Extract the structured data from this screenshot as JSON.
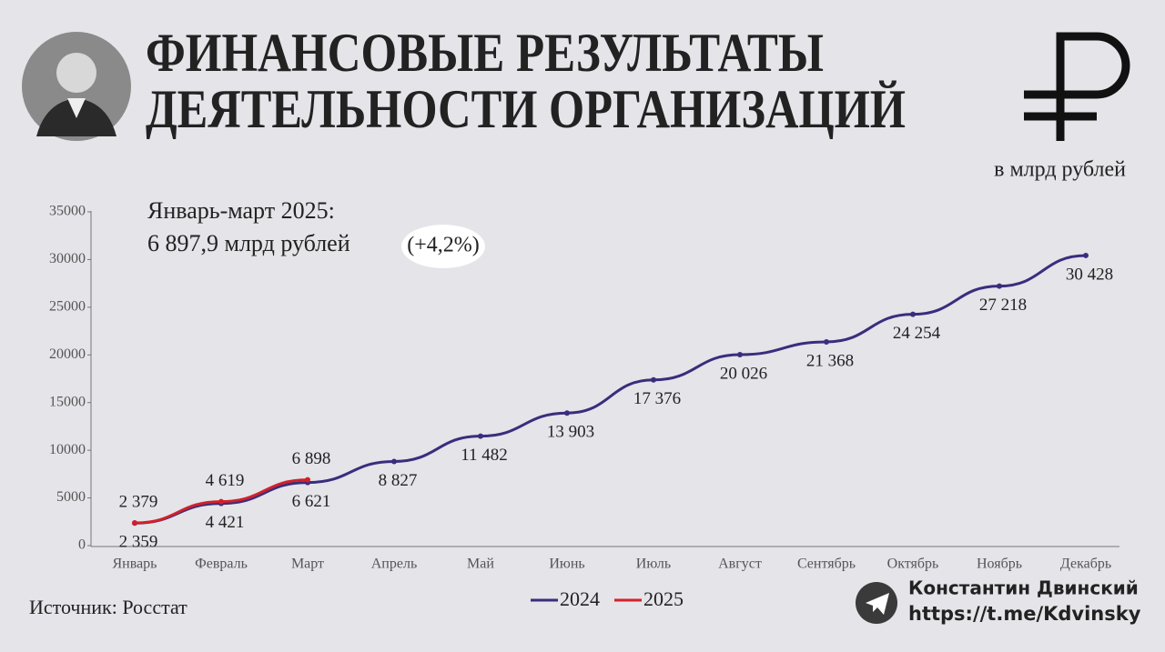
{
  "chart_data": {
    "type": "line",
    "title": [
      "ФИНАНСОВЫЕ РЕЗУЛЬТАТЫ",
      "ДЕЯТЕЛЬНОСТИ ОРГАНИЗАЦИЙ"
    ],
    "unit": "в млрд рублей",
    "annotation": [
      "Январь-март 2025:",
      "6 897,9 млрд рублей",
      "(+4,2%)"
    ],
    "source": "Источник: Росстат",
    "author": "Константин Двинский",
    "link": "https://t.me/Kdvinsky",
    "categories": [
      "Январь",
      "Февраль",
      "Март",
      "Апрель",
      "Май",
      "Июнь",
      "Июль",
      "Август",
      "Сентябрь",
      "Октябрь",
      "Ноябрь",
      "Декабрь"
    ],
    "series": [
      {
        "name": "2024",
        "color": "#3a2d7c",
        "values": [
          2359,
          4421,
          6621,
          8827,
          11482,
          13903,
          17376,
          20026,
          21368,
          24254,
          27218,
          30428
        ],
        "value_labels": [
          "2 359",
          "4 421",
          "6 621",
          "8 827",
          "11 482",
          "13 903",
          "17 376",
          "20 026",
          "21 368",
          "24 254",
          "27 218",
          "30 428"
        ]
      },
      {
        "name": "2025",
        "color": "#d0212b",
        "values": [
          2379,
          4619,
          6898,
          null,
          null,
          null,
          null,
          null,
          null,
          null,
          null,
          null
        ],
        "value_labels": [
          "2 379",
          "4 619",
          "6 898",
          null,
          null,
          null,
          null,
          null,
          null,
          null,
          null,
          null
        ]
      }
    ],
    "ylim": [
      0,
      35000
    ],
    "yticks": [
      0,
      5000,
      10000,
      15000,
      20000,
      25000,
      30000,
      35000
    ],
    "legend": "bottom"
  }
}
